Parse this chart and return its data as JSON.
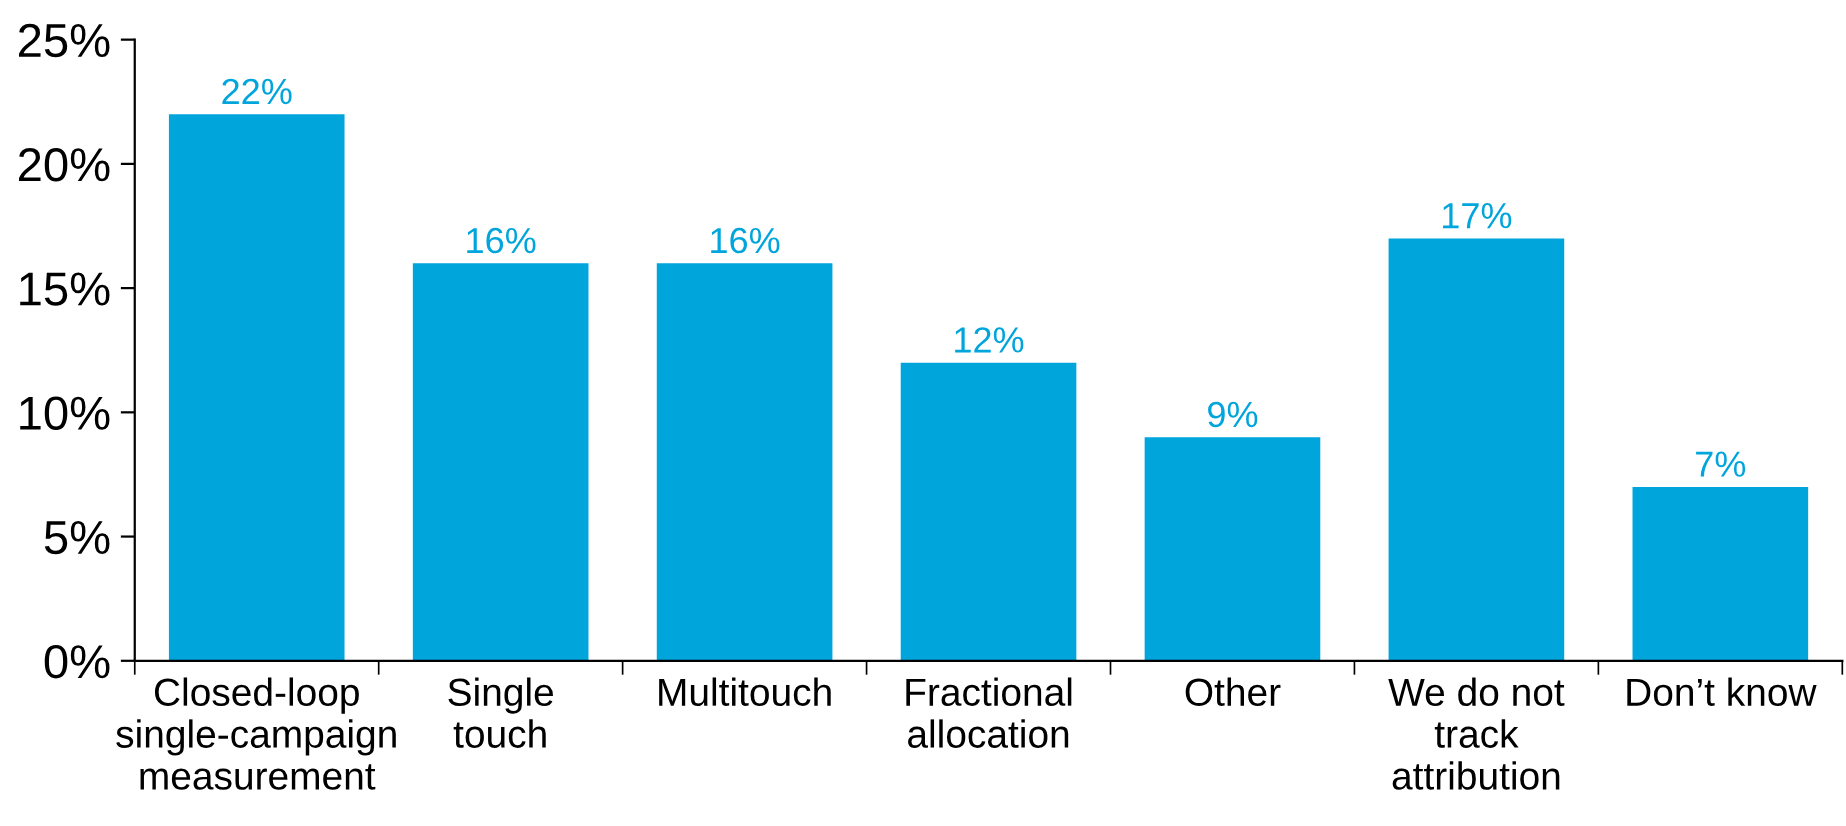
{
  "chart_data": {
    "type": "bar",
    "categories": [
      "Closed-loop\nsingle-campaign\nmeasurement",
      "Single\ntouch",
      "Multitouch",
      "Fractional\nallocation",
      "Other",
      "We do not\ntrack\nattribution",
      "Don’t know"
    ],
    "values": [
      22,
      16,
      16,
      12,
      9,
      17,
      7
    ],
    "value_labels": [
      "22%",
      "16%",
      "16%",
      "12%",
      "9%",
      "17%",
      "7%"
    ],
    "color": "#00a5dc",
    "ylim": [
      0,
      25
    ],
    "yticks": [
      {
        "value": 0,
        "label": "0%"
      },
      {
        "value": 5,
        "label": "5%"
      },
      {
        "value": 10,
        "label": "10%"
      },
      {
        "value": 15,
        "label": "15%"
      },
      {
        "value": 20,
        "label": "20%"
      },
      {
        "value": 25,
        "label": "25%"
      }
    ],
    "grid": false,
    "legend": false
  }
}
